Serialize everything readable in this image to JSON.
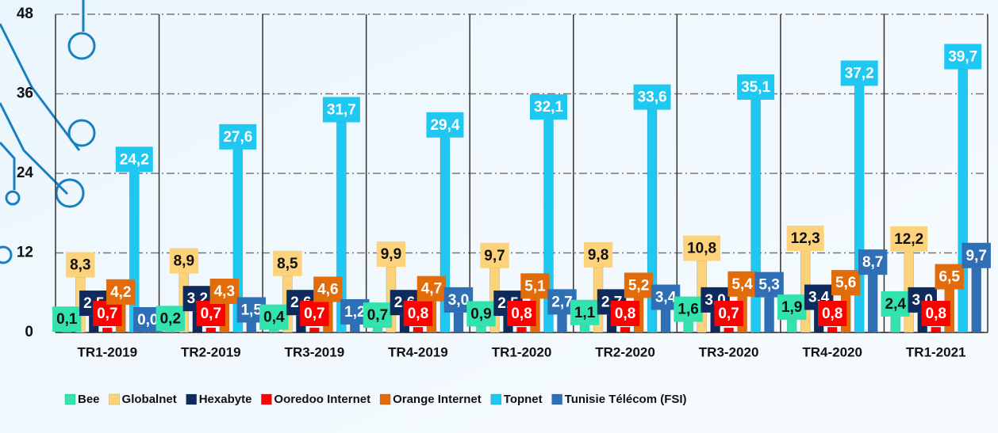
{
  "chart_data": {
    "type": "bar",
    "categories": [
      "TR1-2019",
      "TR2-2019",
      "TR3-2019",
      "TR4-2019",
      "TR1-2020",
      "TR2-2020",
      "TR3-2020",
      "TR4-2020",
      "TR1-2021"
    ],
    "series": [
      {
        "name": "Bee",
        "color": "#33e3ad",
        "values": [
          0.1,
          0.2,
          0.4,
          0.7,
          0.9,
          1.1,
          1.6,
          1.9,
          2.4
        ],
        "value_labels": [
          "0,1",
          "0,2",
          "0,4",
          "0,7",
          "0,9",
          "1,1",
          "1,6",
          "1,9",
          "2,4"
        ]
      },
      {
        "name": "Globalnet",
        "color": "#fcd27a",
        "values": [
          8.3,
          8.9,
          8.5,
          9.9,
          9.7,
          9.8,
          10.8,
          12.3,
          12.2
        ],
        "value_labels": [
          "8,3",
          "8,9",
          "8,5",
          "9,9",
          "9,7",
          "9,8",
          "10,8",
          "12,3",
          "12,2"
        ]
      },
      {
        "name": "Hexabyte",
        "color": "#0f2a5c",
        "values": [
          2.5,
          3.2,
          2.6,
          2.6,
          2.5,
          2.7,
          3.0,
          3.4,
          3.0
        ],
        "value_labels": [
          "2,5",
          "3,2",
          "2,6",
          "2,6",
          "2,5",
          "2,7",
          "3,0",
          "3,4",
          "3,0"
        ]
      },
      {
        "name": "Ooredoo Internet",
        "color": "#ff0000",
        "values": [
          0.7,
          0.7,
          0.7,
          0.8,
          0.8,
          0.8,
          0.7,
          0.8,
          0.8
        ],
        "value_labels": [
          "0,7",
          "0,7",
          "0,7",
          "0,8",
          "0,8",
          "0,8",
          "0,7",
          "0,8",
          "0,8"
        ]
      },
      {
        "name": "Orange Internet",
        "color": "#e36c0a",
        "values": [
          4.2,
          4.3,
          4.6,
          4.7,
          5.1,
          5.2,
          5.4,
          5.6,
          6.5
        ],
        "value_labels": [
          "4,2",
          "4,3",
          "4,6",
          "4,7",
          "5,1",
          "5,2",
          "5,4",
          "5,6",
          "6,5"
        ]
      },
      {
        "name": "Topnet",
        "color": "#1fc8f0",
        "values": [
          24.2,
          27.6,
          31.7,
          29.4,
          32.1,
          33.6,
          35.1,
          37.2,
          39.7
        ],
        "value_labels": [
          "24,2",
          "27,6",
          "31,7",
          "29,4",
          "32,1",
          "33,6",
          "35,1",
          "37,2",
          "39,7"
        ]
      },
      {
        "name": "Tunisie Télécom (FSI)",
        "color": "#2f6fb5",
        "values": [
          0.0,
          1.5,
          1.2,
          3.0,
          2.7,
          3.4,
          5.3,
          8.7,
          9.7
        ],
        "value_labels": [
          "0,0",
          "1,5",
          "1,2",
          "3,0",
          "2,7",
          "3,4",
          "5,3",
          "8,7",
          "9,7"
        ]
      }
    ],
    "ylim": [
      0,
      48
    ],
    "yticks": [
      0,
      12,
      24,
      36,
      48
    ],
    "grid": true
  }
}
